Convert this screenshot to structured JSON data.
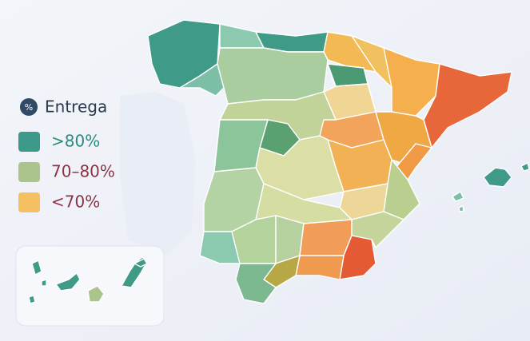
{
  "legend": {
    "icon": "%",
    "title": "Entrega",
    "items": [
      {
        "label": ">80%",
        "color": "#3b9a8a",
        "text_color": "#2c8a7c"
      },
      {
        "label": "70–80%",
        "color": "#aac48c",
        "text_color": "#8a3344"
      },
      {
        "label": "<70%",
        "color": "#f5c062",
        "text_color": "#8a3344"
      }
    ]
  }
}
